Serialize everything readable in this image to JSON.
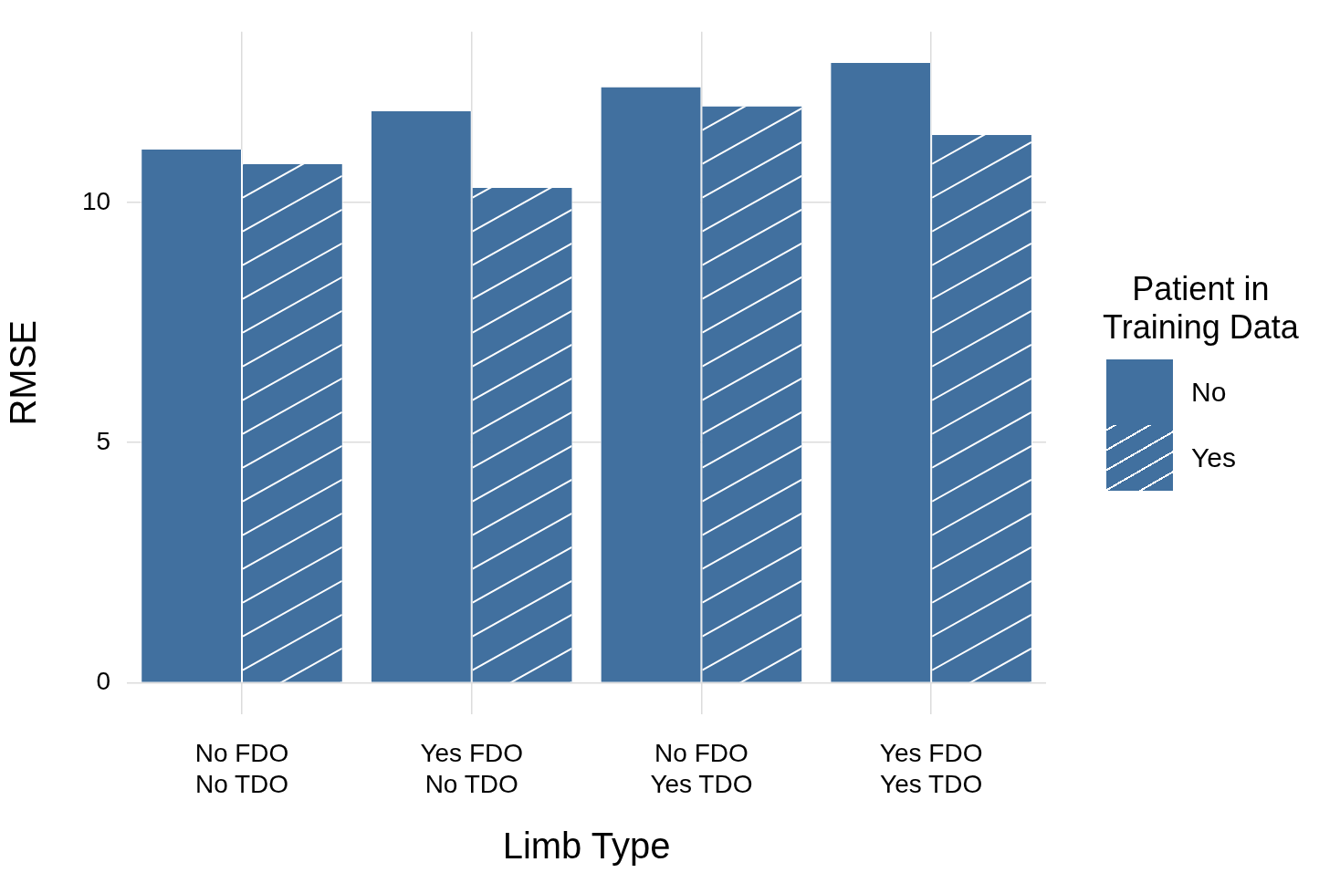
{
  "chart_data": {
    "type": "bar",
    "xlabel": "Limb Type",
    "ylabel": "RMSE",
    "legend_title": "Patient in\nTraining Data",
    "categories": [
      "No FDO\nNo TDO",
      "Yes FDO\nNo TDO",
      "No FDO\nYes TDO",
      "Yes FDO\nYes TDO"
    ],
    "series": [
      {
        "name": "No",
        "color": "#41709f",
        "values": [
          11.1,
          11.9,
          12.4,
          12.9
        ]
      },
      {
        "name": "Yes",
        "color": "#41709f",
        "values": [
          10.8,
          10.3,
          12.0,
          11.4
        ]
      }
    ],
    "ylim": [
      -0.65,
      13.55
    ],
    "yticks": [
      0,
      5,
      10
    ],
    "grid": true,
    "legend": "right"
  }
}
